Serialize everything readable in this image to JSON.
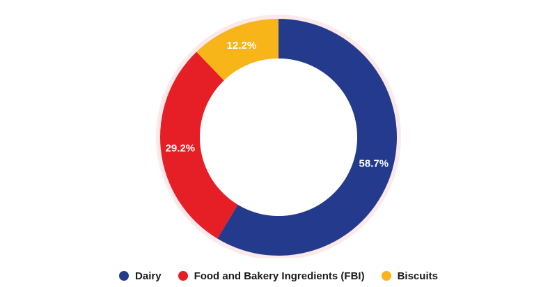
{
  "chart_data": {
    "type": "pie",
    "categories": [
      "Dairy",
      "Food and Bakery Ingredients (FBI)",
      "Biscuits"
    ],
    "values": [
      58.7,
      29.2,
      12.2
    ],
    "value_labels": [
      "58.7%",
      "29.2%",
      "12.2%"
    ],
    "colors": [
      "#243b8d",
      "#e61e25",
      "#f7b519"
    ],
    "ring_color": "#fde9ea",
    "donut": true,
    "start_angle": "12 o'clock",
    "direction": "clockwise",
    "legend_position": "bottom"
  }
}
